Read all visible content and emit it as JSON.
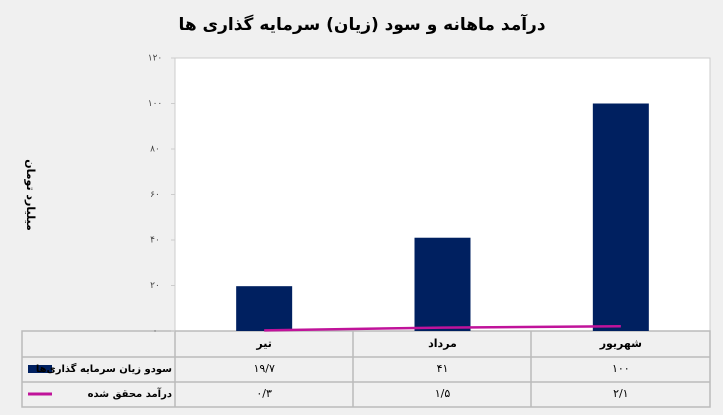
{
  "chart_data": {
    "type": "bar",
    "title": "درآمد ماهانه و سود (زیان) سرمایه گذاری ها",
    "y_label": "میلیارد تومان",
    "categories": [
      "تیر",
      "مرداد",
      "شهریور"
    ],
    "series": [
      {
        "name": "سودو زیان سرمایه گذاری‌ها",
        "type": "bar",
        "color": "#002060",
        "values": [
          19.7,
          41,
          100
        ],
        "value_labels": [
          "۱۹/۷",
          "۴۱",
          "۱۰۰"
        ]
      },
      {
        "name": "درآمد محقق شده",
        "type": "line",
        "color": "#c0139a",
        "values": [
          0.3,
          1.5,
          2.1
        ],
        "value_labels": [
          "۰/۳",
          "۱/۵",
          "۲/۱"
        ]
      }
    ],
    "ylim": [
      0,
      120
    ],
    "yticks": [
      {
        "value": 0,
        "label": "۰"
      },
      {
        "value": 20,
        "label": "۲۰"
      },
      {
        "value": 40,
        "label": "۴۰"
      },
      {
        "value": 60,
        "label": "۶۰"
      },
      {
        "value": 80,
        "label": "۸۰"
      },
      {
        "value": 100,
        "label": "۱۰۰"
      },
      {
        "value": 120,
        "label": "۱۲۰"
      }
    ],
    "grid": false
  }
}
